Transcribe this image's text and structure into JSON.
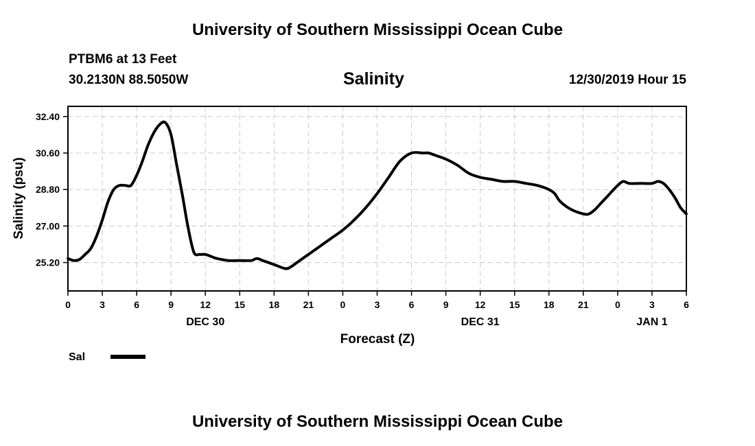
{
  "header": {
    "title": "University of Southern Mississippi Ocean Cube",
    "station": "PTBM6 at 13 Feet",
    "coords": "30.2130N 88.5050W",
    "variable": "Salinity",
    "timestamp": "12/30/2019 Hour 15"
  },
  "footer": {
    "title": "University of Southern Mississippi Ocean Cube"
  },
  "legend": {
    "label": "Sal"
  },
  "chart_data": {
    "type": "line",
    "title": "Salinity",
    "xlabel": "Forecast (Z)",
    "ylabel": "Salinity (psu)",
    "ylim": [
      23.8,
      32.9
    ],
    "xlim": [
      0,
      54
    ],
    "grid": true,
    "x_unit": "hours from 12/30 00Z",
    "x_ticks": [
      {
        "x": 0,
        "label": "0"
      },
      {
        "x": 3,
        "label": "3"
      },
      {
        "x": 6,
        "label": "6"
      },
      {
        "x": 9,
        "label": "9"
      },
      {
        "x": 12,
        "label": "12"
      },
      {
        "x": 15,
        "label": "15"
      },
      {
        "x": 18,
        "label": "18"
      },
      {
        "x": 21,
        "label": "21"
      },
      {
        "x": 24,
        "label": "0"
      },
      {
        "x": 27,
        "label": "3"
      },
      {
        "x": 30,
        "label": "6"
      },
      {
        "x": 33,
        "label": "9"
      },
      {
        "x": 36,
        "label": "12"
      },
      {
        "x": 39,
        "label": "15"
      },
      {
        "x": 42,
        "label": "18"
      },
      {
        "x": 45,
        "label": "21"
      },
      {
        "x": 48,
        "label": "0"
      },
      {
        "x": 51,
        "label": "3"
      },
      {
        "x": 54,
        "label": "6"
      }
    ],
    "date_labels": [
      {
        "x": 12,
        "label": "DEC 30"
      },
      {
        "x": 36,
        "label": "DEC 31"
      },
      {
        "x": 51,
        "label": "JAN 1"
      }
    ],
    "y_ticks": [
      {
        "y": 25.2,
        "label": "25.20"
      },
      {
        "y": 27.0,
        "label": "27.00"
      },
      {
        "y": 28.8,
        "label": "28.80"
      },
      {
        "y": 30.6,
        "label": "30.60"
      },
      {
        "y": 32.4,
        "label": "32.40"
      }
    ],
    "series": [
      {
        "name": "Sal",
        "x": [
          0,
          0.5,
          1,
          1.5,
          2,
          2.5,
          3,
          3.5,
          4,
          4.5,
          5,
          5.5,
          6,
          6.5,
          7,
          7.5,
          8,
          8.5,
          9,
          9.5,
          10,
          10.5,
          11,
          11.5,
          12,
          12.5,
          13,
          14,
          15,
          16,
          16.5,
          17,
          18,
          19,
          19.5,
          20,
          21,
          22,
          23,
          24,
          25,
          26,
          27,
          28,
          29,
          30,
          31,
          31.5,
          32,
          33,
          34,
          35,
          36,
          37,
          38,
          39,
          40,
          41,
          42,
          42.5,
          43,
          44,
          45,
          45.5,
          46,
          46.5,
          47,
          48,
          48.5,
          49,
          50,
          51,
          51.5,
          52,
          52.5,
          53,
          53.5,
          54
        ],
        "values": [
          25.4,
          25.3,
          25.35,
          25.6,
          25.9,
          26.5,
          27.3,
          28.2,
          28.8,
          29.0,
          29.0,
          29.0,
          29.5,
          30.2,
          31.0,
          31.6,
          32.0,
          32.1,
          31.5,
          30.0,
          28.5,
          26.9,
          25.7,
          25.6,
          25.6,
          25.5,
          25.4,
          25.3,
          25.3,
          25.3,
          25.4,
          25.3,
          25.1,
          24.9,
          25.0,
          25.2,
          25.6,
          26.0,
          26.4,
          26.8,
          27.3,
          27.9,
          28.6,
          29.4,
          30.2,
          30.6,
          30.6,
          30.6,
          30.5,
          30.3,
          30.0,
          29.6,
          29.4,
          29.3,
          29.2,
          29.2,
          29.1,
          29.0,
          28.8,
          28.6,
          28.2,
          27.8,
          27.6,
          27.6,
          27.8,
          28.1,
          28.4,
          29.0,
          29.2,
          29.1,
          29.1,
          29.1,
          29.2,
          29.1,
          28.8,
          28.4,
          27.9,
          27.6
        ]
      }
    ]
  }
}
